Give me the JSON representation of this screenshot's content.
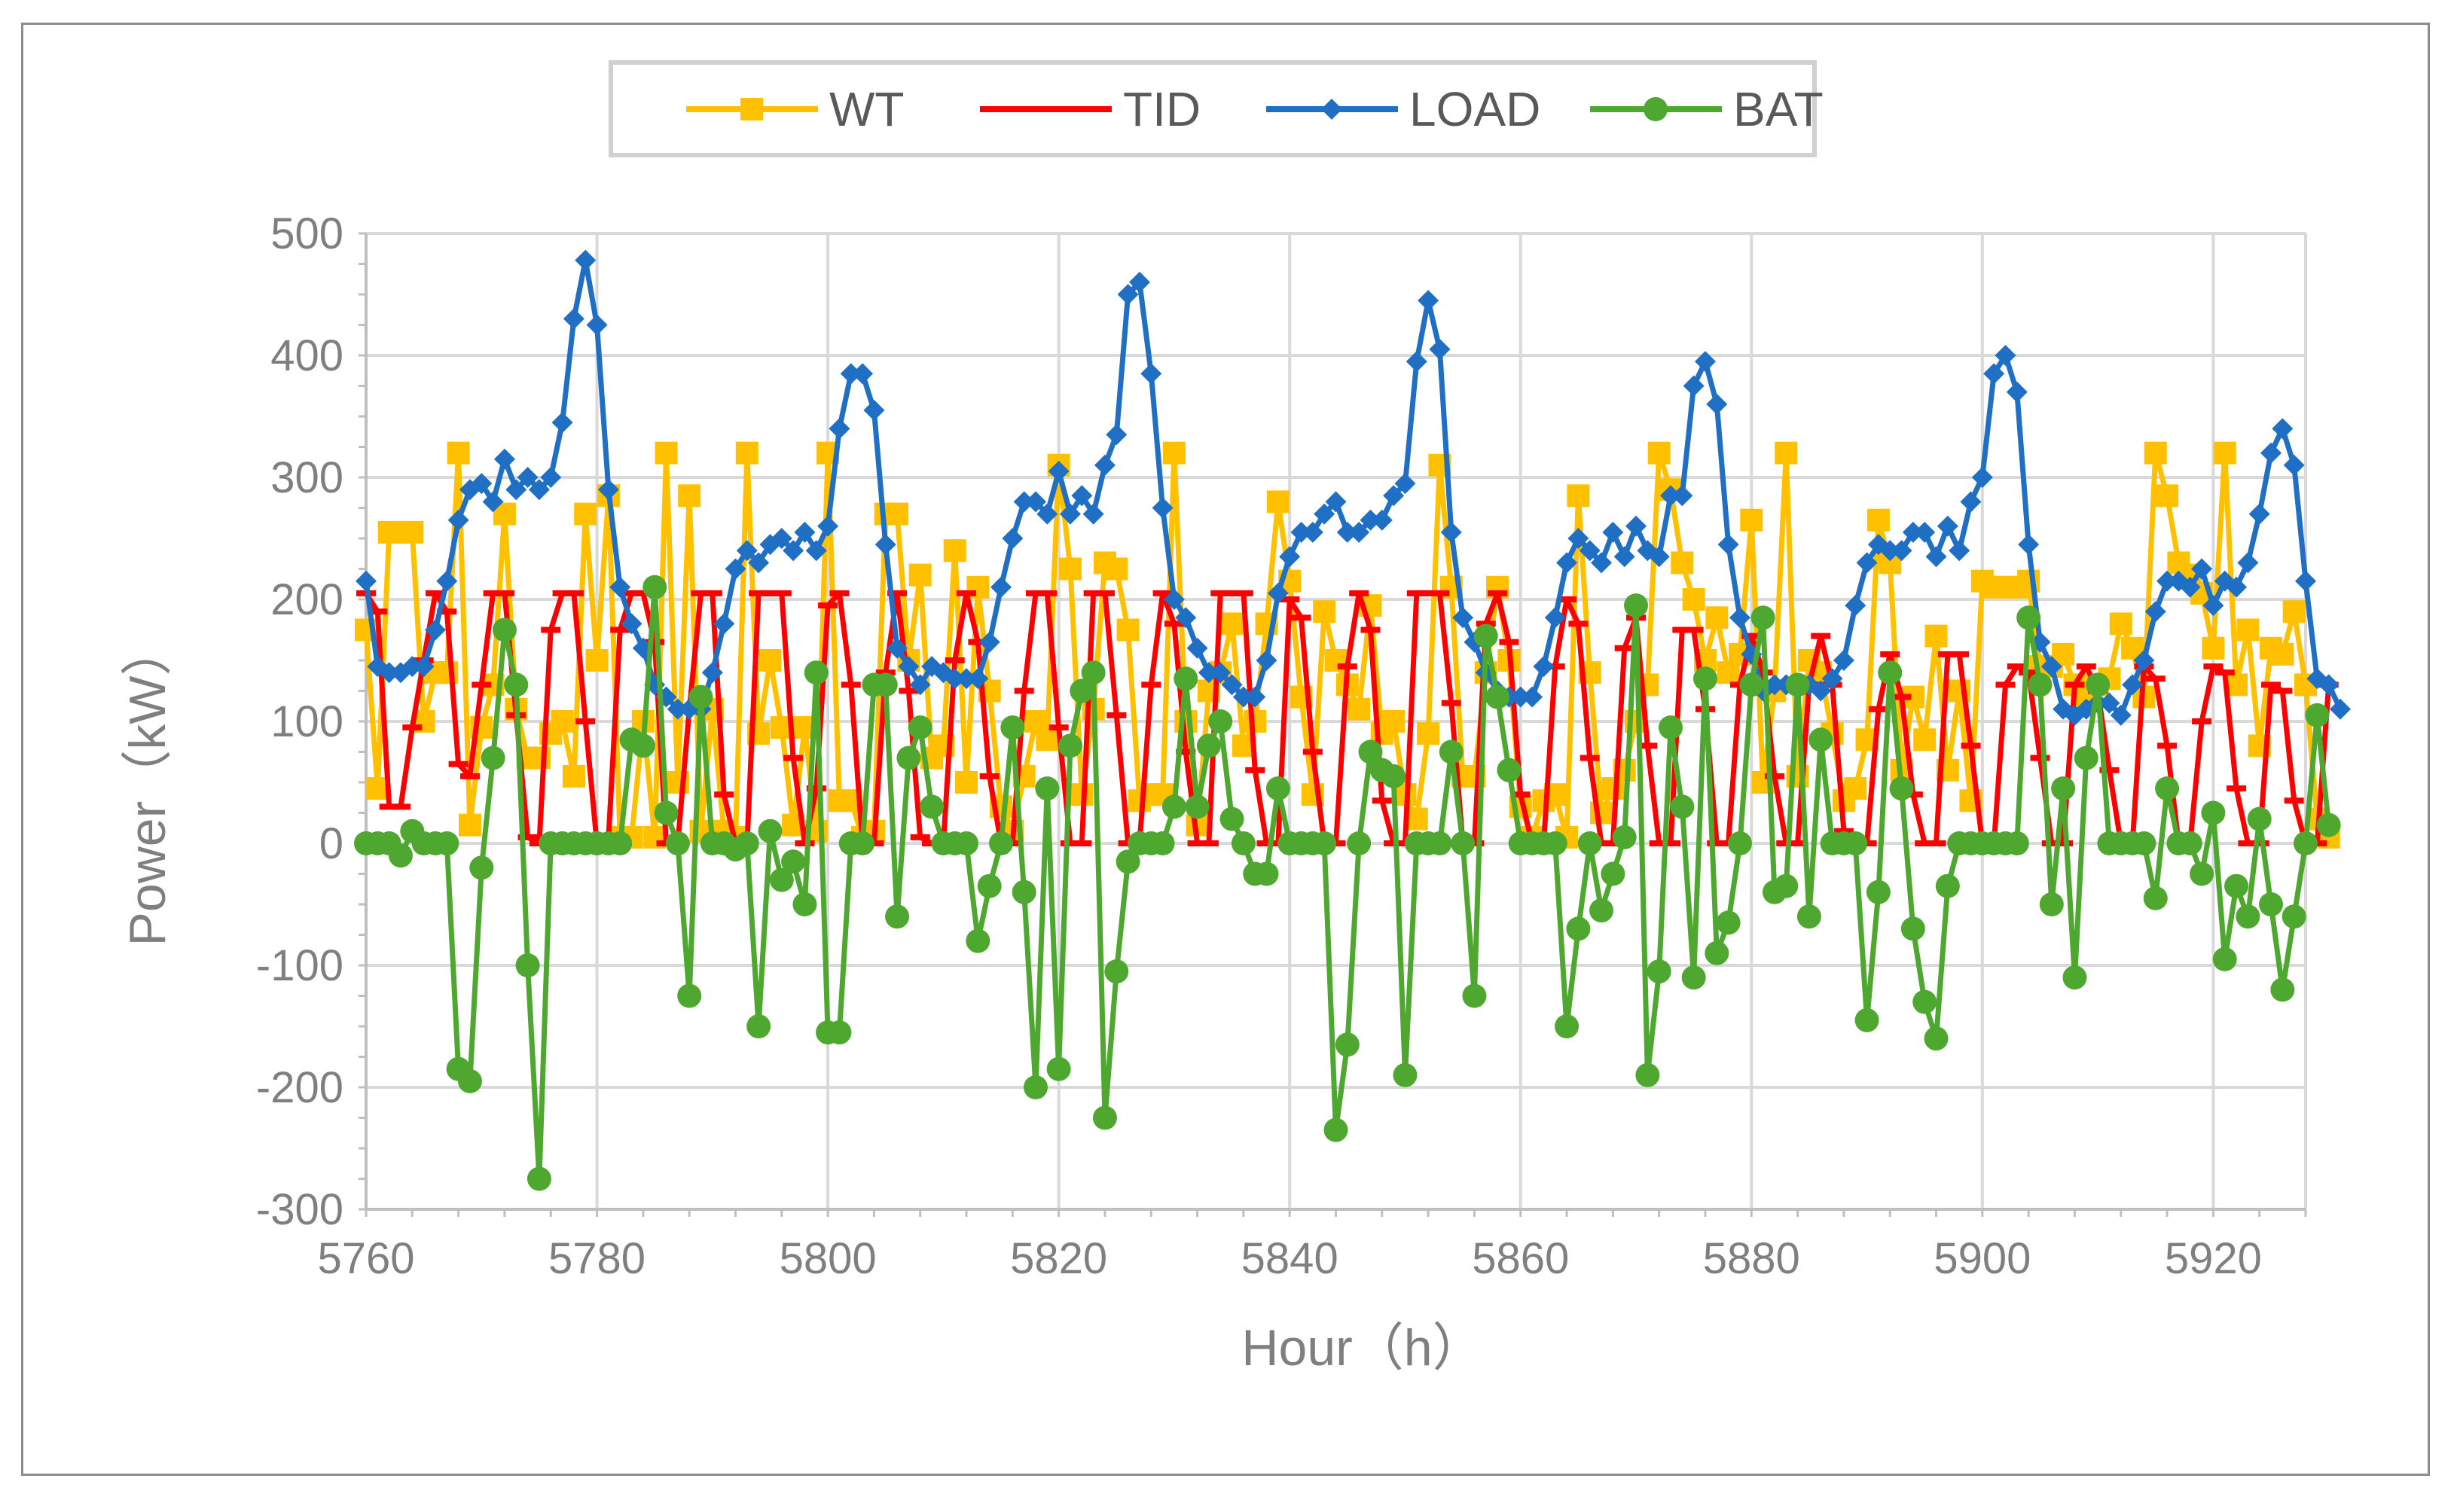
{
  "chart_data": {
    "type": "line",
    "title": "",
    "xlabel": "Hour（h）",
    "ylabel": "Power（kW）",
    "xlim": [
      5760,
      5928
    ],
    "ylim": [
      -300,
      500
    ],
    "x_ticks": [
      5760,
      5780,
      5800,
      5820,
      5840,
      5860,
      5880,
      5900,
      5920
    ],
    "x_tick_labels": [
      "5760",
      "5780",
      "5800",
      "5820",
      "5840",
      "5860",
      "5880",
      "5900",
      "5920"
    ],
    "y_ticks": [
      -300,
      -200,
      -100,
      0,
      100,
      200,
      300,
      400,
      500
    ],
    "y_tick_labels": [
      "-300",
      "-200",
      "-100",
      "0",
      "100",
      "200",
      "300",
      "400",
      "500"
    ],
    "grid": true,
    "legend_position": "top",
    "x_start": 5760,
    "x_step": 1,
    "series": [
      {
        "name": "WT",
        "color": "#FFC000",
        "marker": "square",
        "values": [
          175,
          45,
          255,
          255,
          255,
          100,
          140,
          140,
          320,
          15,
          95,
          130,
          270,
          110,
          70,
          70,
          90,
          100,
          55,
          270,
          150,
          285,
          5,
          5,
          100,
          5,
          320,
          50,
          285,
          10,
          110,
          10,
          5,
          320,
          90,
          150,
          95,
          15,
          95,
          10,
          320,
          35,
          35,
          5,
          10,
          270,
          270,
          150,
          220,
          70,
          80,
          240,
          50,
          210,
          125,
          30,
          10,
          55,
          100,
          85,
          310,
          225,
          40,
          110,
          230,
          225,
          175,
          35,
          40,
          40,
          320,
          100,
          15,
          125,
          140,
          180,
          80,
          100,
          180,
          280,
          215,
          120,
          40,
          190,
          150,
          130,
          110,
          195,
          90,
          100,
          40,
          20,
          90,
          310,
          210,
          55,
          55,
          140,
          210,
          150,
          30,
          5,
          35,
          40,
          5,
          285,
          140,
          25,
          45,
          60,
          100,
          130,
          320,
          290,
          230,
          200,
          150,
          185,
          140,
          155,
          265,
          50,
          125,
          320,
          55,
          150,
          140,
          90,
          35,
          45,
          85,
          265,
          230,
          60,
          120,
          85,
          170,
          60,
          125,
          35,
          215,
          210,
          210,
          210,
          215,
          145,
          145,
          155,
          130,
          120,
          130,
          135,
          180,
          160,
          120,
          320,
          285,
          230,
          220,
          205,
          160,
          320,
          130,
          175,
          80,
          160,
          155,
          190,
          130,
          20,
          5
        ]
      },
      {
        "name": "TID",
        "color": "#FF0000",
        "marker": "dash",
        "values": [
          205,
          190,
          30,
          30,
          95,
          150,
          205,
          190,
          65,
          55,
          130,
          205,
          205,
          105,
          5,
          0,
          175,
          205,
          205,
          100,
          0,
          5,
          175,
          205,
          205,
          165,
          0,
          0,
          110,
          205,
          205,
          40,
          0,
          0,
          205,
          205,
          205,
          70,
          0,
          45,
          195,
          205,
          130,
          0,
          0,
          140,
          205,
          125,
          5,
          0,
          0,
          150,
          205,
          165,
          55,
          0,
          0,
          125,
          205,
          205,
          95,
          0,
          0,
          205,
          205,
          105,
          0,
          0,
          130,
          205,
          180,
          75,
          0,
          0,
          205,
          205,
          205,
          60,
          0,
          0,
          200,
          185,
          75,
          0,
          0,
          145,
          205,
          175,
          35,
          0,
          0,
          205,
          205,
          205,
          115,
          0,
          0,
          180,
          205,
          165,
          40,
          0,
          0,
          145,
          200,
          180,
          70,
          0,
          0,
          160,
          185,
          80,
          0,
          0,
          175,
          175,
          110,
          0,
          0,
          130,
          170,
          140,
          55,
          0,
          0,
          130,
          170,
          130,
          10,
          0,
          0,
          110,
          155,
          120,
          40,
          0,
          0,
          155,
          155,
          80,
          0,
          0,
          130,
          145,
          140,
          70,
          0,
          0,
          130,
          145,
          125,
          60,
          0,
          0,
          145,
          135,
          80,
          0,
          0,
          100,
          145,
          140,
          45,
          0,
          0,
          130,
          125,
          35,
          0,
          0,
          130
        ]
      },
      {
        "name": "LOAD",
        "color": "#1F6FC5",
        "marker": "diamond",
        "values": [
          215,
          145,
          140,
          140,
          145,
          145,
          175,
          215,
          265,
          290,
          295,
          280,
          315,
          290,
          300,
          290,
          300,
          345,
          430,
          478,
          425,
          290,
          210,
          180,
          160,
          130,
          120,
          110,
          110,
          110,
          140,
          180,
          225,
          240,
          230,
          245,
          250,
          240,
          255,
          240,
          260,
          340,
          385,
          385,
          355,
          245,
          160,
          145,
          130,
          145,
          140,
          135,
          135,
          135,
          165,
          210,
          250,
          280,
          280,
          270,
          305,
          270,
          285,
          270,
          310,
          335,
          450,
          460,
          385,
          275,
          200,
          185,
          160,
          140,
          140,
          130,
          120,
          120,
          150,
          205,
          235,
          255,
          255,
          270,
          280,
          255,
          255,
          265,
          265,
          285,
          295,
          395,
          445,
          405,
          255,
          185,
          165,
          140,
          125,
          120,
          120,
          120,
          145,
          185,
          230,
          250,
          240,
          230,
          255,
          235,
          260,
          240,
          235,
          285,
          285,
          375,
          395,
          360,
          245,
          185,
          155,
          125,
          130,
          130,
          130,
          130,
          125,
          135,
          150,
          195,
          230,
          245,
          240,
          240,
          255,
          255,
          235,
          260,
          240,
          280,
          300,
          385,
          400,
          370,
          245,
          165,
          145,
          110,
          105,
          110,
          115,
          115,
          105,
          130,
          150,
          190,
          215,
          215,
          210,
          225,
          195,
          215,
          210,
          230,
          270,
          320,
          340,
          310,
          215,
          135,
          130,
          110
        ]
      },
      {
        "name": "BAT",
        "color": "#4EA72E",
        "marker": "circle",
        "values": [
          0,
          0,
          0,
          -10,
          10,
          0,
          0,
          0,
          -185,
          -195,
          -20,
          70,
          175,
          130,
          -100,
          -275,
          0,
          0,
          0,
          0,
          0,
          0,
          0,
          85,
          80,
          210,
          25,
          0,
          -125,
          120,
          0,
          0,
          -5,
          0,
          -150,
          10,
          -30,
          -15,
          -50,
          140,
          -155,
          -155,
          0,
          0,
          130,
          130,
          -60,
          70,
          95,
          30,
          0,
          0,
          0,
          -80,
          -35,
          0,
          95,
          -40,
          -200,
          45,
          -185,
          80,
          125,
          140,
          -225,
          -105,
          -15,
          0,
          0,
          0,
          30,
          135,
          30,
          80,
          100,
          20,
          0,
          -25,
          -25,
          45,
          0,
          0,
          0,
          0,
          -235,
          -165,
          0,
          75,
          60,
          55,
          -190,
          0,
          0,
          0,
          75,
          0,
          -125,
          170,
          120,
          60,
          0,
          0,
          0,
          0,
          -150,
          -70,
          0,
          -55,
          -25,
          5,
          195,
          -190,
          -105,
          95,
          30,
          -110,
          135,
          -90,
          -65,
          0,
          130,
          185,
          -40,
          -35,
          130,
          -60,
          85,
          0,
          0,
          0,
          -145,
          -40,
          140,
          45,
          -70,
          -130,
          -160,
          -35,
          0,
          0,
          0,
          0,
          0,
          0,
          185,
          130,
          -50,
          45,
          -110,
          70,
          130,
          0,
          0,
          0,
          0,
          -45,
          45,
          0,
          0,
          -25,
          25,
          -95,
          -35,
          -60,
          20,
          -50,
          -120,
          -60,
          0,
          105,
          15
        ]
      }
    ]
  }
}
